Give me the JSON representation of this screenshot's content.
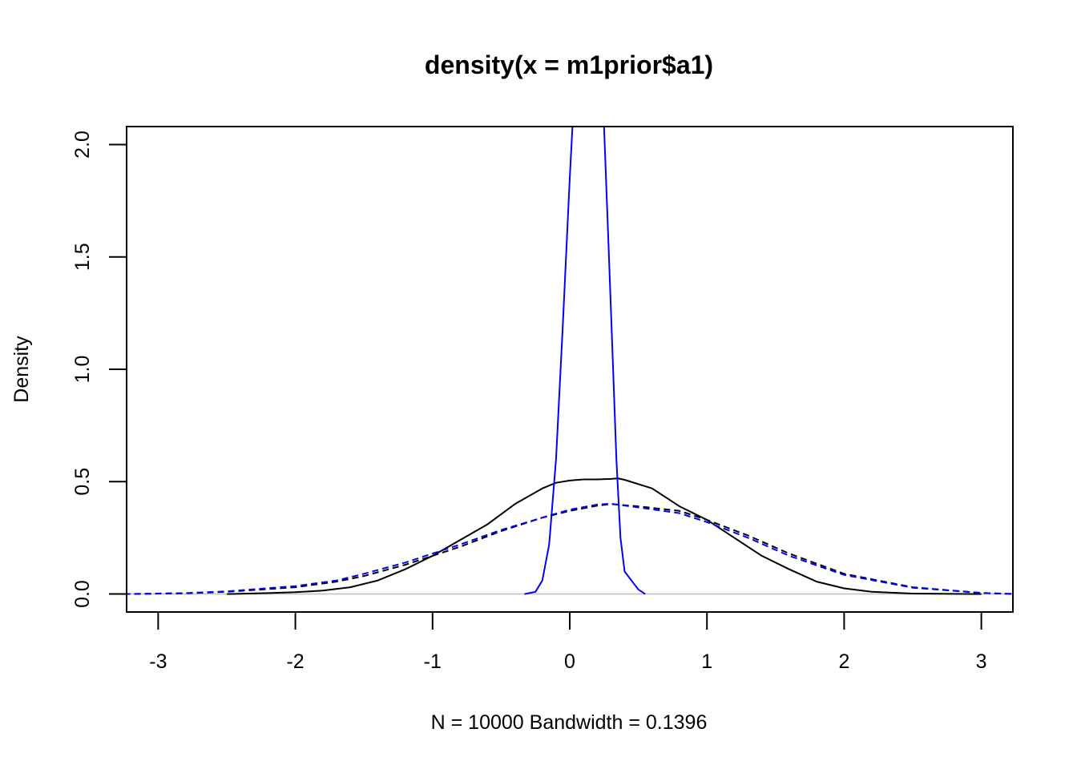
{
  "chart_data": {
    "type": "line",
    "title": "density(x = m1prior$a1)",
    "xlabel": "N = 10000   Bandwidth = 0.1396",
    "ylabel": "Density",
    "xlim": [
      -3.23,
      3.23
    ],
    "ylim": [
      -0.08,
      2.08
    ],
    "xticks": [
      "-3",
      "-2",
      "-1",
      "0",
      "1",
      "2",
      "3"
    ],
    "yticks": [
      "0.0",
      "0.5",
      "1.0",
      "1.5",
      "2.0"
    ],
    "baseline": {
      "y": 0,
      "color": "#bebebe"
    },
    "grid": false,
    "legend": "none",
    "series": [
      {
        "color": "#000000",
        "dash": "solid",
        "x": [
          -2.5,
          -2.2,
          -2.0,
          -1.8,
          -1.6,
          -1.4,
          -1.2,
          -1.0,
          -0.8,
          -0.6,
          -0.4,
          -0.2,
          -0.1,
          0.0,
          0.1,
          0.2,
          0.3,
          0.35,
          0.4,
          0.6,
          0.8,
          1.0,
          1.2,
          1.4,
          1.6,
          1.8,
          2.0,
          2.2,
          2.5,
          3.0
        ],
        "y": [
          0.0,
          0.004,
          0.008,
          0.015,
          0.03,
          0.06,
          0.11,
          0.17,
          0.24,
          0.31,
          0.4,
          0.47,
          0.495,
          0.505,
          0.51,
          0.51,
          0.512,
          0.515,
          0.508,
          0.47,
          0.39,
          0.33,
          0.25,
          0.17,
          0.11,
          0.055,
          0.025,
          0.01,
          0.002,
          0.0
        ]
      },
      {
        "color": "#000000",
        "dash": "dashed",
        "x": [
          -3.25,
          -2.8,
          -2.5,
          -2.0,
          -1.7,
          -1.5,
          -1.2,
          -1.0,
          -0.8,
          -0.5,
          -0.2,
          0.0,
          0.2,
          0.3,
          0.5,
          0.8,
          1.0,
          1.3,
          1.6,
          2.0,
          2.5,
          3.0,
          3.25
        ],
        "y": [
          0.0,
          0.003,
          0.01,
          0.03,
          0.055,
          0.08,
          0.13,
          0.17,
          0.21,
          0.28,
          0.34,
          0.37,
          0.393,
          0.4,
          0.39,
          0.37,
          0.33,
          0.26,
          0.18,
          0.09,
          0.03,
          0.005,
          0.0
        ]
      },
      {
        "color": "#0000ff",
        "dash": "dashed",
        "x": [
          -3.25,
          -2.8,
          -2.5,
          -2.0,
          -1.7,
          -1.5,
          -1.2,
          -1.0,
          -0.8,
          -0.5,
          -0.2,
          0.0,
          0.2,
          0.3,
          0.5,
          0.8,
          1.0,
          1.3,
          1.6,
          2.0,
          2.5,
          3.0,
          3.25
        ],
        "y": [
          0.0,
          0.004,
          0.012,
          0.035,
          0.06,
          0.09,
          0.14,
          0.18,
          0.22,
          0.285,
          0.34,
          0.375,
          0.398,
          0.402,
          0.385,
          0.36,
          0.32,
          0.25,
          0.17,
          0.085,
          0.028,
          0.005,
          0.0
        ]
      },
      {
        "color": "#0000ff",
        "dash": "solid",
        "x": [
          -0.33,
          -0.25,
          -0.2,
          -0.15,
          -0.1,
          -0.05,
          0.0,
          0.02,
          0.25,
          0.28,
          0.31,
          0.34,
          0.37,
          0.4,
          0.45,
          0.5,
          0.55
        ],
        "y": [
          0.0,
          0.01,
          0.06,
          0.22,
          0.6,
          1.2,
          1.85,
          2.08,
          2.08,
          1.6,
          1.1,
          0.6,
          0.25,
          0.1,
          0.06,
          0.02,
          0.0
        ]
      }
    ]
  }
}
